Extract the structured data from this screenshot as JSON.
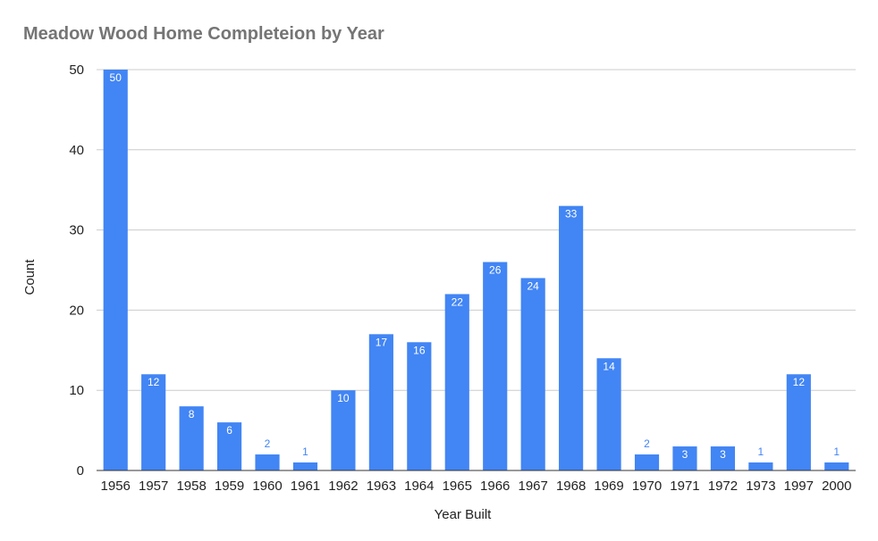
{
  "chart_data": {
    "type": "bar",
    "title": "Meadow Wood Home Completeion by Year",
    "xlabel": "Year Built",
    "ylabel": "Count",
    "categories": [
      "1956",
      "1957",
      "1958",
      "1959",
      "1960",
      "1961",
      "1962",
      "1963",
      "1964",
      "1965",
      "1966",
      "1967",
      "1968",
      "1969",
      "1970",
      "1971",
      "1972",
      "1973",
      "1997",
      "2000"
    ],
    "values": [
      50,
      12,
      8,
      6,
      2,
      1,
      10,
      17,
      16,
      22,
      26,
      24,
      33,
      14,
      2,
      3,
      3,
      1,
      12,
      1
    ],
    "ylim": [
      0,
      50
    ],
    "yticks": [
      0,
      10,
      20,
      30,
      40,
      50
    ],
    "grid": true,
    "legend": "none",
    "bar_color": "#4285f4",
    "label_inside_color": "#ffffff",
    "label_outside_color": "#4285f4"
  }
}
